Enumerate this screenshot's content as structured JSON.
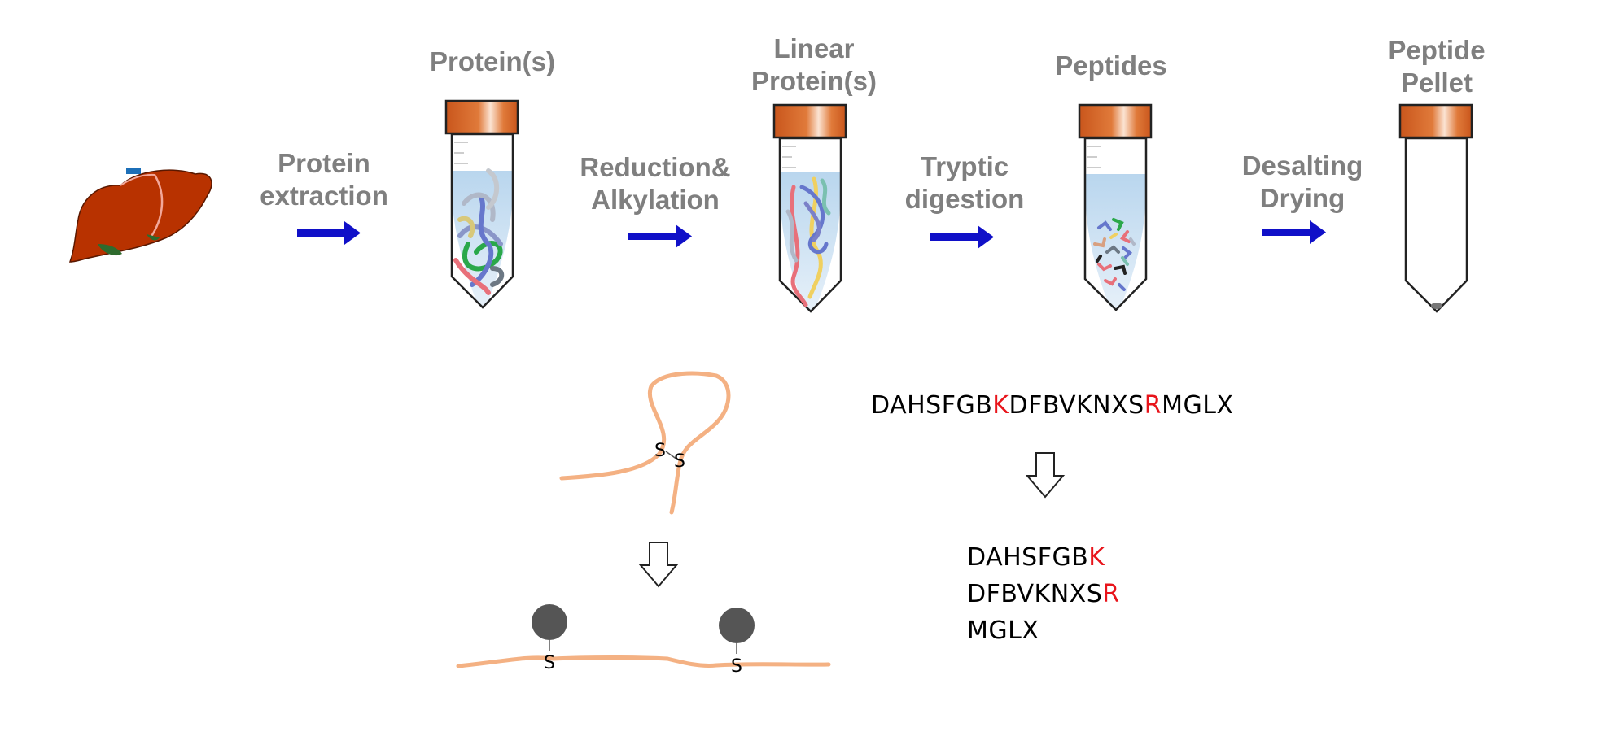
{
  "steps": {
    "extraction": [
      "Protein",
      "extraction"
    ],
    "reduction": [
      "Reduction&",
      "Alkylation"
    ],
    "digestion": [
      "Tryptic",
      "digestion"
    ],
    "desalting": [
      "Desalting",
      "Drying"
    ]
  },
  "tubes": {
    "proteins": [
      "Protein(s)"
    ],
    "linear": [
      "Linear",
      "Protein(s)"
    ],
    "peptides": [
      "Peptides"
    ],
    "pellet": [
      "Peptide",
      "Pellet"
    ]
  },
  "sequence": {
    "full": [
      {
        "text": "DAHSFGB",
        "cleavage": false
      },
      {
        "text": "K",
        "cleavage": true
      },
      {
        "text": "DFBVKNXS",
        "cleavage": false
      },
      {
        "text": "R",
        "cleavage": true
      },
      {
        "text": "MGLX",
        "cleavage": false
      }
    ],
    "fragments": [
      {
        "body": "DAHSFGB",
        "site": "K"
      },
      {
        "body": "DFBVKNXS",
        "site": "R"
      },
      {
        "body": "MGLX",
        "site": ""
      }
    ]
  },
  "disulfide": {
    "atom": "S"
  },
  "colors": {
    "step_label": "#7f7f7f",
    "arrow": "#1010c8",
    "cleavage_site": "#e8141b",
    "chain": "#f4b183",
    "cap": "#d8682a",
    "liquid": "#cfe2f3",
    "liver": "#b83200"
  }
}
